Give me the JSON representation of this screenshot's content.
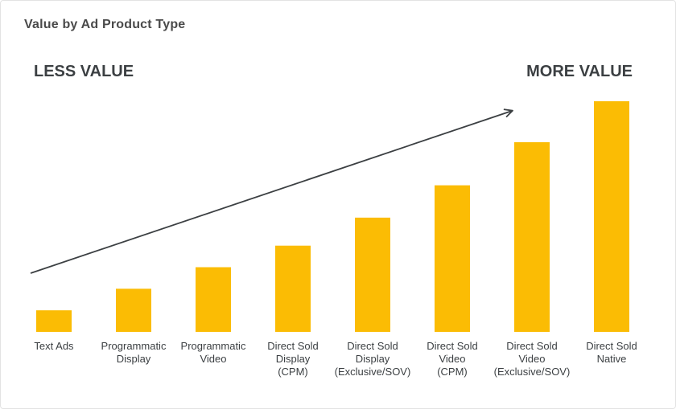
{
  "title": "Value by Ad Product Type",
  "less_label": "LESS VALUE",
  "more_label": "MORE VALUE",
  "colors": {
    "bar": "#FBBC04",
    "arrow": "#3c4043",
    "text": "#3c4043"
  },
  "chart_data": {
    "type": "bar",
    "title": "Value by Ad Product Type",
    "categories": [
      [
        "Text Ads"
      ],
      [
        "Programmatic",
        "Display"
      ],
      [
        "Programmatic",
        "Video"
      ],
      [
        "Direct Sold",
        "Display",
        "(CPM)"
      ],
      [
        "Direct Sold",
        "Display",
        "(Exclusive/SOV)"
      ],
      [
        "Direct Sold",
        "Video",
        "(CPM)"
      ],
      [
        "Direct Sold",
        "Video",
        "(Exclusive/SOV)"
      ],
      [
        "Direct Sold",
        "Native"
      ]
    ],
    "values": [
      1,
      2,
      3,
      4,
      5.3,
      6.8,
      8.8,
      10.7
    ],
    "ylim": [
      0,
      10.7
    ],
    "xlabel": "",
    "ylabel": "",
    "grid": false,
    "axes_visible": false,
    "trend_arrow": "increasing, from lowest-left to upper-right"
  }
}
